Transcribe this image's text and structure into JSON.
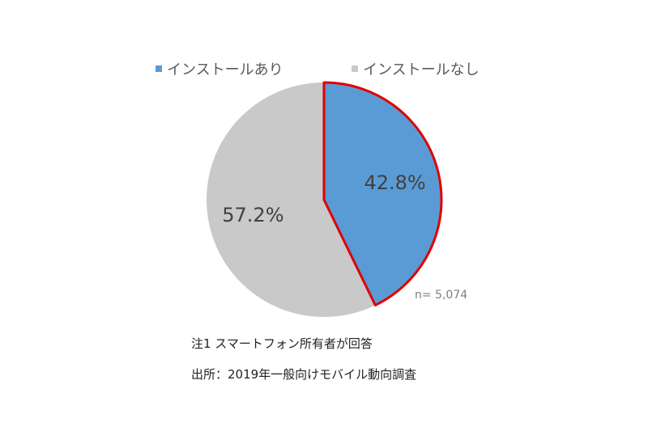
{
  "chart_data": {
    "type": "pie",
    "slices": [
      {
        "name": "インストールあり",
        "value": 42.8,
        "label": "42.8%",
        "color": "#5b9bd5",
        "outline": "#e00000"
      },
      {
        "name": "インストールなし",
        "value": 57.2,
        "label": "57.2%",
        "color": "#c9c9c9"
      }
    ],
    "legend_placement": "top",
    "sample_size": "n= 5,074"
  },
  "notes": {
    "note1": "注1 スマートフォン所有者が回答",
    "source": "出所：2019年一般向けモバイル動向調査"
  }
}
